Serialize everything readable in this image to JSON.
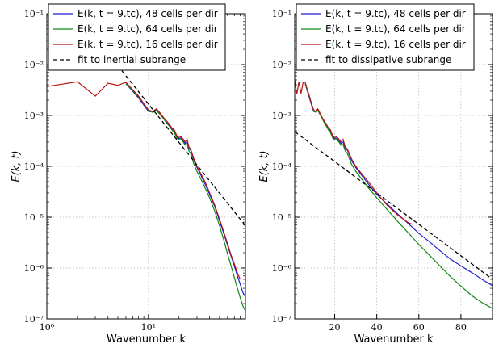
{
  "chart_data": [
    {
      "type": "line",
      "xscale": "log",
      "yscale": "log",
      "xlim": [
        1,
        90
      ],
      "ylim": [
        1e-07,
        0.1
      ],
      "xlabel": "Wavenumber k",
      "ylabel": "E(k, t)",
      "x_ticks": [
        {
          "v": 1,
          "label": "10⁰"
        },
        {
          "v": 10,
          "label": "10¹"
        }
      ],
      "y_ticks": [
        {
          "v": 0.1,
          "label": "10⁻¹"
        },
        {
          "v": 0.01,
          "label": "10⁻²"
        },
        {
          "v": 0.001,
          "label": "10⁻³"
        },
        {
          "v": 0.0001,
          "label": "10⁻⁴"
        },
        {
          "v": 1e-05,
          "label": "10⁻⁵"
        },
        {
          "v": 1e-06,
          "label": "10⁻⁶"
        },
        {
          "v": 1e-07,
          "label": "10⁻⁷"
        }
      ],
      "grid": true,
      "legend_position": "top",
      "series": [
        {
          "name": "E(k, t = 9.tc), 48 cells per dir",
          "color": "#1f1fd6",
          "dash": "solid",
          "x": [
            6,
            7,
            8,
            9,
            10,
            11,
            12,
            13,
            14,
            15,
            16,
            17,
            18,
            19,
            20,
            21,
            22,
            23,
            24,
            25,
            26,
            28,
            30,
            33,
            36,
            40,
            45,
            50,
            55,
            60,
            65,
            70,
            75,
            80,
            85,
            88,
            90
          ],
          "y": [
            0.0042,
            0.003,
            0.0022,
            0.0016,
            0.0012,
            0.00118,
            0.0013,
            0.0011,
            0.0009,
            0.00075,
            0.00065,
            0.00055,
            0.0005,
            0.00038,
            0.00035,
            0.00036,
            0.00032,
            0.00028,
            0.0003,
            0.00022,
            0.00021,
            0.00013,
            9.5e-05,
            6.5e-05,
            4.5e-05,
            2.8e-05,
            1.6e-05,
            8.5e-06,
            4.8e-06,
            2.8e-06,
            1.7e-06,
            1.1e-06,
            7e-07,
            4.8e-07,
            3.3e-07,
            2.9e-07,
            2.8e-07
          ]
        },
        {
          "name": "E(k, t = 9.tc), 64 cells per dir",
          "color": "#118811",
          "dash": "solid",
          "x": [
            6,
            7,
            8,
            9,
            10,
            11,
            12,
            13,
            14,
            15,
            16,
            17,
            18,
            19,
            20,
            21,
            22,
            23,
            24,
            25,
            26,
            28,
            30,
            33,
            36,
            40,
            45,
            50,
            55,
            60,
            65,
            70,
            75,
            80,
            85,
            88,
            90
          ],
          "y": [
            0.0042,
            0.0031,
            0.0023,
            0.0017,
            0.00125,
            0.00115,
            0.00125,
            0.00105,
            0.00088,
            0.00072,
            0.00062,
            0.00052,
            0.00046,
            0.00036,
            0.00033,
            0.00034,
            0.0003,
            0.00026,
            0.00027,
            0.0002,
            0.00018,
            0.00011,
            8e-05,
            5.5e-05,
            3.8e-05,
            2.4e-05,
            1.3e-05,
            6.8e-06,
            3.6e-06,
            1.9e-06,
            1.1e-06,
            6.5e-07,
            4e-07,
            2.6e-07,
            1.8e-07,
            1.55e-07,
            1.5e-07
          ]
        },
        {
          "name": "E(k, t = 9.tc), 16 cells per dir",
          "color": "#b81414",
          "dash": "solid",
          "x": [
            1,
            2,
            3,
            4,
            5,
            6,
            7,
            8,
            9,
            10,
            11,
            12,
            13,
            14,
            15,
            16,
            17,
            18,
            19,
            20,
            21,
            22,
            23,
            24,
            25,
            26,
            28,
            30,
            33,
            36,
            40,
            45,
            50,
            55,
            60,
            65,
            70,
            75,
            80
          ],
          "y": [
            0.0037,
            0.0046,
            0.0024,
            0.0043,
            0.0039,
            0.0045,
            0.0032,
            0.0024,
            0.0017,
            0.00128,
            0.0012,
            0.00135,
            0.00112,
            0.00092,
            0.00078,
            0.00068,
            0.00057,
            0.00052,
            0.0004,
            0.00037,
            0.00038,
            0.00034,
            0.0003,
            0.00034,
            0.00024,
            0.00022,
            0.00014,
            0.0001,
            7e-05,
            5e-05,
            3e-05,
            1.7e-05,
            9.2e-06,
            5.2e-06,
            3e-06,
            1.8e-06,
            1.2e-06,
            8e-07,
            6e-07
          ]
        },
        {
          "name": "fit to inertial subrange",
          "color": "#000000",
          "dash": "dashed",
          "x": [
            5,
            90
          ],
          "y": [
            0.0095,
            6.8e-06
          ]
        }
      ]
    },
    {
      "type": "line",
      "xscale": "linear",
      "yscale": "log",
      "xlim": [
        1,
        95
      ],
      "ylim": [
        1e-07,
        0.1
      ],
      "xlabel": "Wavenumber k",
      "ylabel": "E(k, t)",
      "x_ticks": [
        {
          "v": 20,
          "label": "20"
        },
        {
          "v": 40,
          "label": "40"
        },
        {
          "v": 60,
          "label": "60"
        },
        {
          "v": 80,
          "label": "80"
        }
      ],
      "y_ticks": [
        {
          "v": 0.1,
          "label": "10⁻¹"
        },
        {
          "v": 0.01,
          "label": "10⁻²"
        },
        {
          "v": 0.001,
          "label": "10⁻³"
        },
        {
          "v": 0.0001,
          "label": "10⁻⁴"
        },
        {
          "v": 1e-05,
          "label": "10⁻⁵"
        },
        {
          "v": 1e-06,
          "label": "10⁻⁶"
        },
        {
          "v": 1e-07,
          "label": "10⁻⁷"
        }
      ],
      "grid": true,
      "legend_position": "top",
      "series": [
        {
          "name": "E(k, t = 9.tc), 48 cells per dir",
          "color": "#1f1fd6",
          "dash": "solid",
          "x": [
            6,
            7,
            8,
            9,
            10,
            11,
            12,
            13,
            14,
            15,
            16,
            17,
            18,
            19,
            20,
            21,
            22,
            23,
            24,
            25,
            26,
            28,
            30,
            33,
            36,
            40,
            45,
            50,
            55,
            60,
            65,
            70,
            75,
            80,
            85,
            90,
            95
          ],
          "y": [
            0.0042,
            0.003,
            0.0022,
            0.0016,
            0.0012,
            0.00118,
            0.0013,
            0.0011,
            0.0009,
            0.00075,
            0.00065,
            0.00055,
            0.0005,
            0.00038,
            0.00035,
            0.00036,
            0.00032,
            0.00028,
            0.0003,
            0.00022,
            0.00021,
            0.00013,
            9.5e-05,
            6.5e-05,
            4.5e-05,
            2.8e-05,
            1.8e-05,
            1.15e-05,
            7.5e-06,
            4.8e-06,
            3.3e-06,
            2.2e-06,
            1.5e-06,
            1.1e-06,
            8.2e-07,
            6e-07,
            4.5e-07
          ]
        },
        {
          "name": "E(k, t = 9.tc), 64 cells per dir",
          "color": "#118811",
          "dash": "solid",
          "x": [
            6,
            7,
            8,
            9,
            10,
            11,
            12,
            13,
            14,
            15,
            16,
            17,
            18,
            19,
            20,
            21,
            22,
            23,
            24,
            25,
            26,
            28,
            30,
            33,
            36,
            40,
            45,
            50,
            55,
            60,
            65,
            70,
            75,
            80,
            85,
            90,
            95
          ],
          "y": [
            0.0042,
            0.0031,
            0.0023,
            0.0017,
            0.00125,
            0.00115,
            0.00125,
            0.00105,
            0.00088,
            0.00072,
            0.00062,
            0.00052,
            0.00046,
            0.00036,
            0.00033,
            0.00034,
            0.0003,
            0.00026,
            0.00027,
            0.0002,
            0.00018,
            0.00011,
            8e-05,
            5.5e-05,
            3.8e-05,
            2.4e-05,
            1.4e-05,
            8.2e-06,
            4.9e-06,
            2.9e-06,
            1.8e-06,
            1.1e-06,
            6.8e-07,
            4.4e-07,
            2.9e-07,
            2.1e-07,
            1.6e-07
          ]
        },
        {
          "name": "E(k, t = 9.tc), 16 cells per dir",
          "color": "#b81414",
          "dash": "solid",
          "x": [
            1,
            2,
            3,
            4,
            5,
            6,
            7,
            8,
            9,
            10,
            11,
            12,
            13,
            14,
            15,
            16,
            17,
            18,
            19,
            20,
            21,
            22,
            23,
            24,
            25,
            26,
            28,
            30,
            33,
            36,
            40,
            45,
            50,
            55,
            57
          ],
          "y": [
            0.005,
            0.0026,
            0.0046,
            0.0027,
            0.0045,
            0.0045,
            0.0032,
            0.0024,
            0.0017,
            0.00128,
            0.0012,
            0.00135,
            0.00112,
            0.00092,
            0.00078,
            0.00068,
            0.00057,
            0.00052,
            0.0004,
            0.00037,
            0.00038,
            0.00034,
            0.0003,
            0.00034,
            0.00024,
            0.00022,
            0.00014,
            0.0001,
            7e-05,
            5e-05,
            3e-05,
            1.7e-05,
            1.1e-05,
            7.8e-06,
            7.2e-06
          ]
        },
        {
          "name": "fit to dissipative subrange",
          "color": "#000000",
          "dash": "dashed",
          "x": [
            1,
            95
          ],
          "y": [
            0.00048,
            6e-07
          ]
        }
      ]
    }
  ]
}
